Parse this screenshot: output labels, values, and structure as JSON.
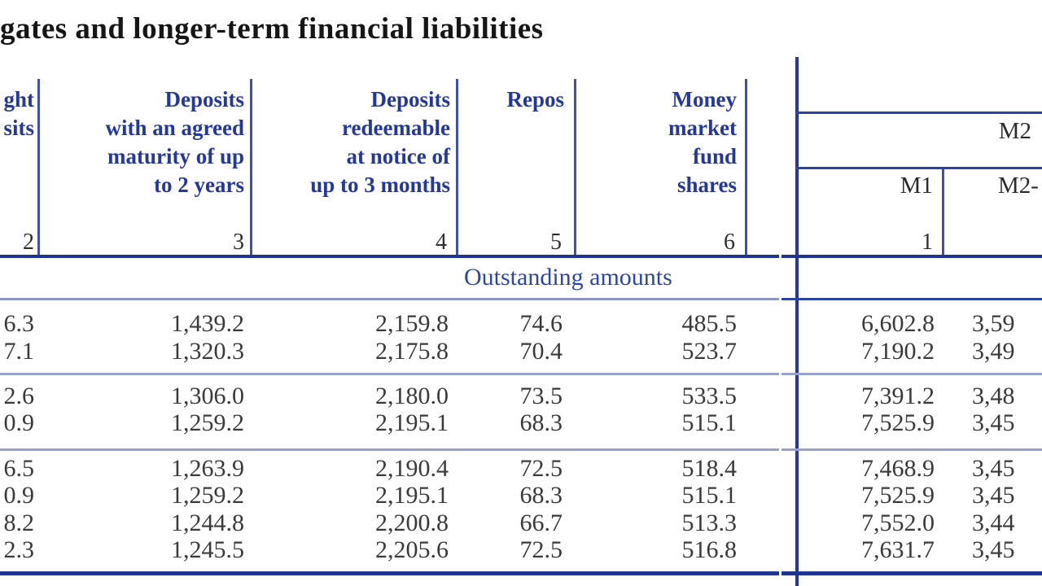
{
  "title": "gates and longer-term financial liabilities",
  "colors": {
    "header_text": "#24389b",
    "title_text": "#161616",
    "data_text": "#3a3a3a",
    "line_dark": "#1e368f",
    "line_mid": "#2a44a3",
    "line_light": "#98a0cd",
    "section_label_text": "#2c479f"
  },
  "table": {
    "left_panel": {
      "col1_header_fragment": "ght\nsits",
      "col2_header": "Deposits\nwith an agreed\nmaturity of up\nto 2 years",
      "col3_header": "Deposits\nredeemable\nat notice of\nup to 3 months",
      "col4_header": "Repos",
      "col5_header": "Money\nmarket\nfund\nshares",
      "column_numbers": [
        "2",
        "3",
        "4",
        "5",
        "6"
      ]
    },
    "right_panel": {
      "m2_header": "M2",
      "m1_header": "M1",
      "m2_minus_header_fragment": "M2-",
      "m1_column_number": "1"
    },
    "section_label": "Outstanding amounts",
    "rows": [
      [
        "6.3",
        "1,439.2",
        "2,159.8",
        "74.6",
        "485.5",
        "6,602.8",
        "3,59"
      ],
      [
        "7.1",
        "1,320.3",
        "2,175.8",
        "70.4",
        "523.7",
        "7,190.2",
        "3,49"
      ],
      [
        "2.6",
        "1,306.0",
        "2,180.0",
        "73.5",
        "533.5",
        "7,391.2",
        "3,48"
      ],
      [
        "0.9",
        "1,259.2",
        "2,195.1",
        "68.3",
        "515.1",
        "7,525.9",
        "3,45"
      ],
      [
        "6.5",
        "1,263.9",
        "2,190.4",
        "72.5",
        "518.4",
        "7,468.9",
        "3,45"
      ],
      [
        "0.9",
        "1,259.2",
        "2,195.1",
        "68.3",
        "515.1",
        "7,525.9",
        "3,45"
      ],
      [
        "8.2",
        "1,244.8",
        "2,200.8",
        "66.7",
        "513.3",
        "7,552.0",
        "3,44"
      ],
      [
        "2.3",
        "1,245.5",
        "2,205.6",
        "72.5",
        "516.8",
        "7,631.7",
        "3,45"
      ]
    ]
  }
}
